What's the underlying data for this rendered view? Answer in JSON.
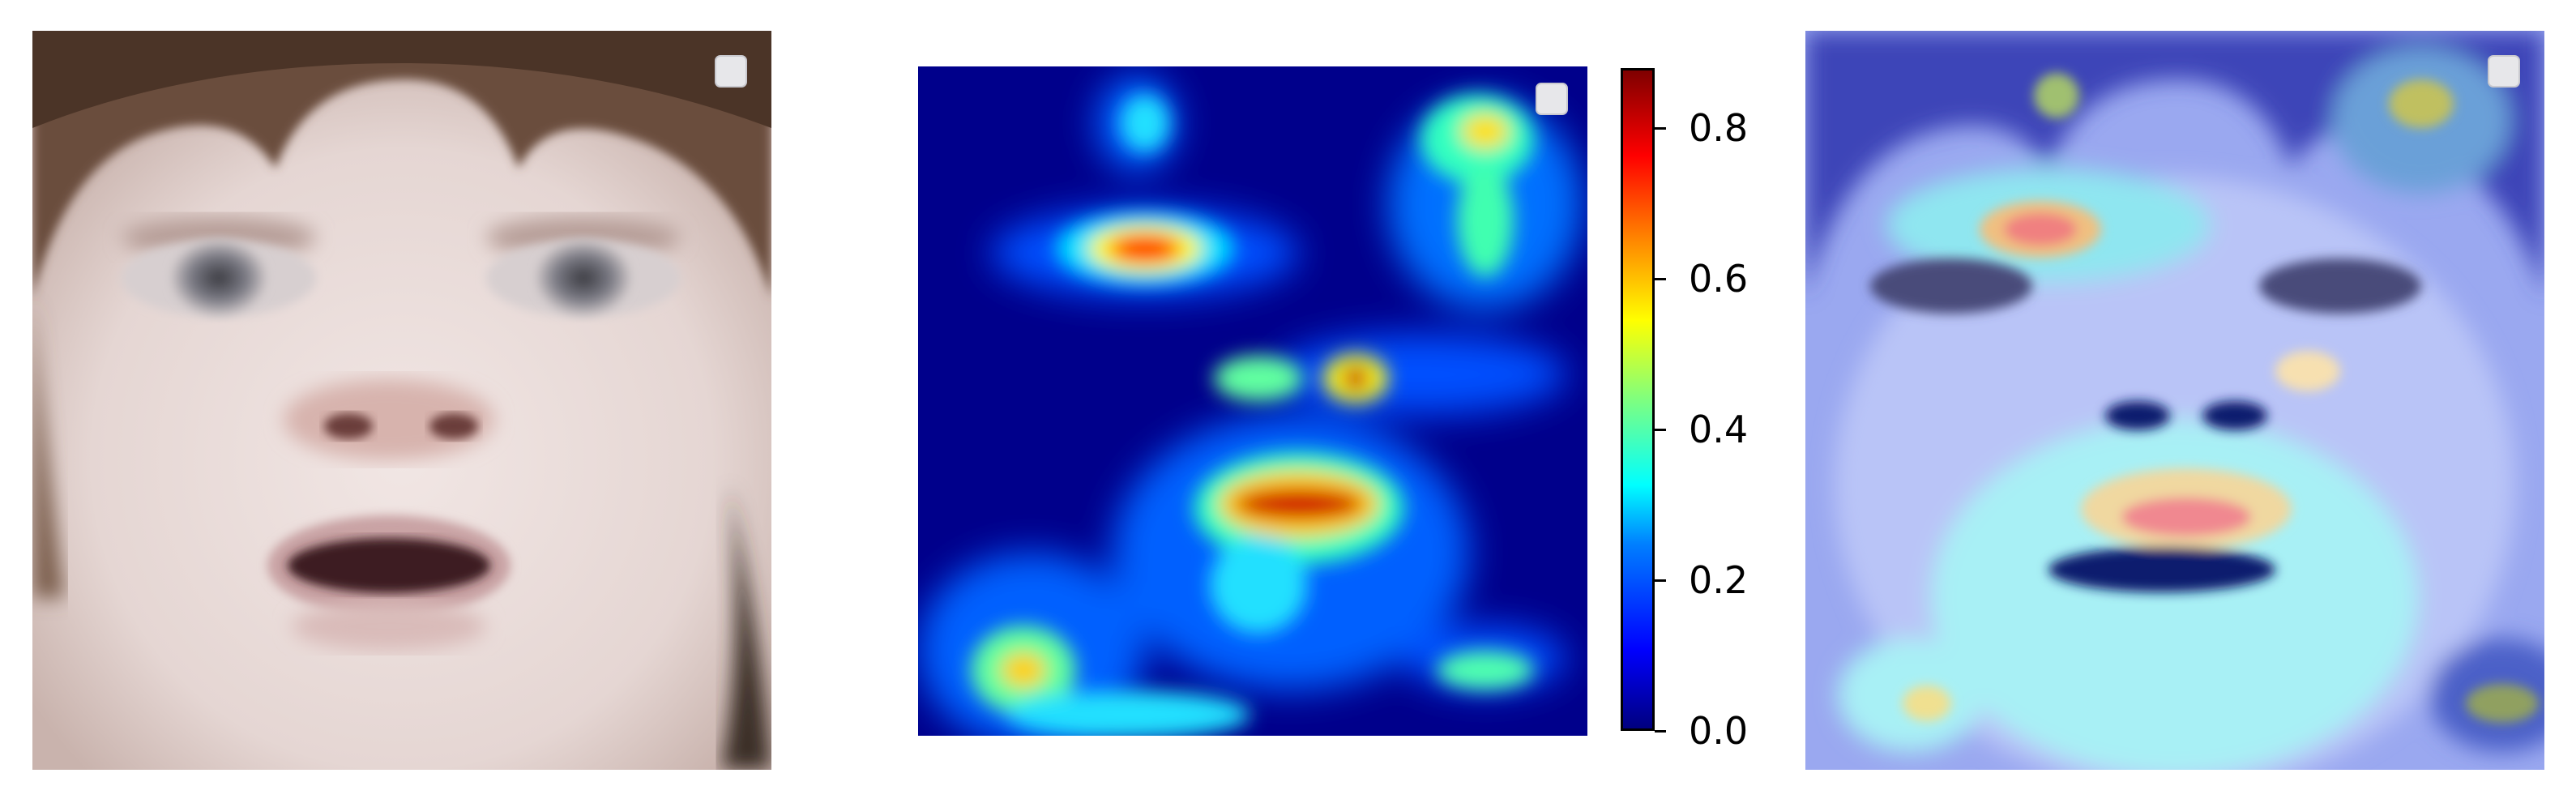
{
  "figure": {
    "panels": [
      {
        "id": "original",
        "icon": "child-face-photo"
      },
      {
        "id": "attention-map",
        "icon": "heatmap-image"
      },
      {
        "id": "overlay",
        "icon": "heatmap-overlay-photo"
      }
    ]
  },
  "colorbar": {
    "colormap": "jet",
    "range": [
      0.0,
      0.88
    ],
    "ticks": [
      {
        "value": 0.0,
        "label": "0.0"
      },
      {
        "value": 0.2,
        "label": "0.2"
      },
      {
        "value": 0.4,
        "label": "0.4"
      },
      {
        "value": 0.6,
        "label": "0.6"
      },
      {
        "value": 0.8,
        "label": "0.8"
      }
    ]
  },
  "colors": {
    "background": "#ffffff",
    "heatmap_base": "#00008b",
    "legend_fill": "#e7e7ea"
  }
}
